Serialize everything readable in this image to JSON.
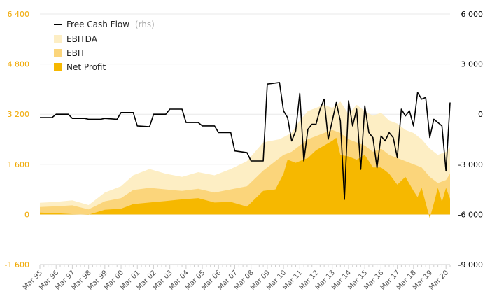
{
  "chart_data": {
    "type": "area",
    "colors": {
      "ebitda": "#fdeec4",
      "ebit": "#fbd57b",
      "net_profit": "#f6b800",
      "fcf": "#000000",
      "left_axis_text": "#f0a800",
      "gridline": "#e8e8e8"
    },
    "left_axis": {
      "ticks": [
        "-1 600",
        "0",
        "1 600",
        "3 200",
        "4 800",
        "6 400"
      ],
      "min": -1600,
      "max": 6400
    },
    "right_axis": {
      "ticks": [
        "-9 000",
        "-6 000",
        "-3 000",
        "0",
        "3 000",
        "6 000"
      ],
      "min": -9000,
      "max": 6000
    },
    "x_labels": [
      "Mar 95",
      "Mar 96",
      "Mar 97",
      "Mar 98",
      "Mar 99",
      "Mar 00",
      "Mar 01",
      "Mar 02",
      "Mar 03",
      "Mar 04",
      "Mar 05",
      "Mar 06",
      "Mar 07",
      "Mar 08",
      "Mar 09",
      "Mar 10",
      "Mar 11",
      "Mar 12",
      "Mar 13",
      "Mar 14",
      "Mar 15",
      "Mar 16",
      "Mar 17",
      "Mar 18",
      "Mar 19",
      "Mar 20"
    ],
    "x_range": [
      1995.0,
      2020.25
    ],
    "legend": {
      "fcf": "Free Cash Flow",
      "fcf_suffix": "(rhs)",
      "ebitda": "EBITDA",
      "ebit": "EBIT",
      "net_profit": "Net Profit"
    },
    "ebitda": [
      [
        1995,
        370
      ],
      [
        1996,
        400
      ],
      [
        1997,
        450
      ],
      [
        1998,
        300
      ],
      [
        1999,
        700
      ],
      [
        2000,
        900
      ],
      [
        2000.75,
        1250
      ],
      [
        2001.75,
        1450
      ],
      [
        2002.75,
        1300
      ],
      [
        2003.75,
        1200
      ],
      [
        2004.75,
        1350
      ],
      [
        2005.75,
        1250
      ],
      [
        2006.75,
        1450
      ],
      [
        2007.75,
        1700
      ],
      [
        2008.75,
        2300
      ],
      [
        2009.75,
        2400
      ],
      [
        2010.5,
        2600
      ],
      [
        2011,
        3000
      ],
      [
        2011.5,
        3300
      ],
      [
        2012,
        3400
      ],
      [
        2012.5,
        3500
      ],
      [
        2013,
        3400
      ],
      [
        2013.5,
        3600
      ],
      [
        2014,
        3200
      ],
      [
        2014.5,
        3500
      ],
      [
        2015,
        3300
      ],
      [
        2015.5,
        3150
      ],
      [
        2016,
        3250
      ],
      [
        2016.5,
        3000
      ],
      [
        2017,
        2900
      ],
      [
        2017.5,
        2700
      ],
      [
        2018,
        2600
      ],
      [
        2018.5,
        2400
      ],
      [
        2019,
        2100
      ],
      [
        2019.5,
        1900
      ],
      [
        2020,
        2000
      ],
      [
        2020.25,
        2150
      ]
    ],
    "ebit": [
      [
        1995,
        240
      ],
      [
        1996,
        260
      ],
      [
        1997,
        290
      ],
      [
        1998,
        160
      ],
      [
        1999,
        420
      ],
      [
        2000,
        520
      ],
      [
        2000.75,
        780
      ],
      [
        2001.75,
        850
      ],
      [
        2002.75,
        800
      ],
      [
        2003.75,
        750
      ],
      [
        2004.75,
        820
      ],
      [
        2005.75,
        700
      ],
      [
        2006.75,
        800
      ],
      [
        2007.75,
        900
      ],
      [
        2008.75,
        1400
      ],
      [
        2009.5,
        1700
      ],
      [
        2010,
        1900
      ],
      [
        2010.5,
        2000
      ],
      [
        2011,
        2200
      ],
      [
        2011.5,
        2400
      ],
      [
        2012,
        2500
      ],
      [
        2012.5,
        2600
      ],
      [
        2013,
        2700
      ],
      [
        2013.5,
        2600
      ],
      [
        2014,
        2400
      ],
      [
        2014.5,
        2300
      ],
      [
        2015,
        2200
      ],
      [
        2015.5,
        2000
      ],
      [
        2016,
        2100
      ],
      [
        2016.5,
        1900
      ],
      [
        2017,
        1800
      ],
      [
        2017.5,
        1700
      ],
      [
        2018,
        1600
      ],
      [
        2018.5,
        1500
      ],
      [
        2019,
        1200
      ],
      [
        2019.5,
        1000
      ],
      [
        2020,
        1100
      ],
      [
        2020.25,
        1300
      ]
    ],
    "net_profit": [
      [
        1995,
        60
      ],
      [
        1996,
        40
      ],
      [
        1997,
        10
      ],
      [
        1998,
        -10
      ],
      [
        1999,
        150
      ],
      [
        2000,
        180
      ],
      [
        2000.75,
        330
      ],
      [
        2001.75,
        380
      ],
      [
        2002.75,
        430
      ],
      [
        2003.75,
        480
      ],
      [
        2004.75,
        520
      ],
      [
        2005.75,
        380
      ],
      [
        2006.75,
        400
      ],
      [
        2007.75,
        250
      ],
      [
        2008.75,
        750
      ],
      [
        2009.5,
        800
      ],
      [
        2010,
        1300
      ],
      [
        2010.25,
        1750
      ],
      [
        2010.75,
        1650
      ],
      [
        2011,
        1700
      ],
      [
        2011.5,
        1800
      ],
      [
        2012,
        2050
      ],
      [
        2012.5,
        2200
      ],
      [
        2013,
        2350
      ],
      [
        2013.25,
        2450
      ],
      [
        2013.5,
        1900
      ],
      [
        2014,
        1850
      ],
      [
        2014.5,
        1750
      ],
      [
        2015,
        1900
      ],
      [
        2015.5,
        1500
      ],
      [
        2016,
        1500
      ],
      [
        2016.5,
        1300
      ],
      [
        2017,
        950
      ],
      [
        2017.5,
        1200
      ],
      [
        2018,
        750
      ],
      [
        2018.25,
        550
      ],
      [
        2018.5,
        850
      ],
      [
        2019,
        -120
      ],
      [
        2019.25,
        350
      ],
      [
        2019.5,
        850
      ],
      [
        2019.75,
        400
      ],
      [
        2020,
        850
      ],
      [
        2020.25,
        500
      ]
    ],
    "free_cash_flow": [
      [
        1995,
        -200
      ],
      [
        1995.75,
        -200
      ],
      [
        1996,
        0
      ],
      [
        1996.75,
        0
      ],
      [
        1997,
        -250
      ],
      [
        1997.75,
        -250
      ],
      [
        1998,
        -300
      ],
      [
        1998.75,
        -300
      ],
      [
        1999,
        -250
      ],
      [
        1999.75,
        -300
      ],
      [
        2000,
        100
      ],
      [
        2000.75,
        100
      ],
      [
        2001,
        -700
      ],
      [
        2001.75,
        -750
      ],
      [
        2002,
        0
      ],
      [
        2002.75,
        0
      ],
      [
        2003,
        300
      ],
      [
        2003.75,
        300
      ],
      [
        2004,
        -500
      ],
      [
        2004.75,
        -500
      ],
      [
        2005,
        -700
      ],
      [
        2005.75,
        -700
      ],
      [
        2006,
        -1100
      ],
      [
        2006.75,
        -1100
      ],
      [
        2007,
        -2200
      ],
      [
        2007.75,
        -2300
      ],
      [
        2008,
        -2800
      ],
      [
        2008.75,
        -2800
      ],
      [
        2009,
        1800
      ],
      [
        2009.75,
        1900
      ],
      [
        2010,
        200
      ],
      [
        2010.25,
        -200
      ],
      [
        2010.5,
        -1600
      ],
      [
        2010.75,
        -1000
      ],
      [
        2011,
        1250
      ],
      [
        2011.25,
        -2800
      ],
      [
        2011.5,
        -900
      ],
      [
        2011.75,
        -600
      ],
      [
        2012,
        -600
      ],
      [
        2012.25,
        300
      ],
      [
        2012.5,
        900
      ],
      [
        2012.75,
        -1500
      ],
      [
        2013,
        -400
      ],
      [
        2013.25,
        700
      ],
      [
        2013.5,
        -400
      ],
      [
        2013.75,
        -5100
      ],
      [
        2014,
        800
      ],
      [
        2014.25,
        -700
      ],
      [
        2014.5,
        300
      ],
      [
        2014.75,
        -3300
      ],
      [
        2015,
        500
      ],
      [
        2015.25,
        -1100
      ],
      [
        2015.5,
        -1400
      ],
      [
        2015.75,
        -3200
      ],
      [
        2016,
        -1300
      ],
      [
        2016.25,
        -1600
      ],
      [
        2016.5,
        -1100
      ],
      [
        2016.75,
        -1400
      ],
      [
        2017,
        -2600
      ],
      [
        2017.25,
        300
      ],
      [
        2017.5,
        -100
      ],
      [
        2017.75,
        200
      ],
      [
        2018,
        -700
      ],
      [
        2018.25,
        1300
      ],
      [
        2018.5,
        900
      ],
      [
        2018.75,
        1000
      ],
      [
        2019,
        -1400
      ],
      [
        2019.25,
        -300
      ],
      [
        2019.75,
        -700
      ],
      [
        2020,
        -3400
      ],
      [
        2020.25,
        700
      ]
    ]
  }
}
